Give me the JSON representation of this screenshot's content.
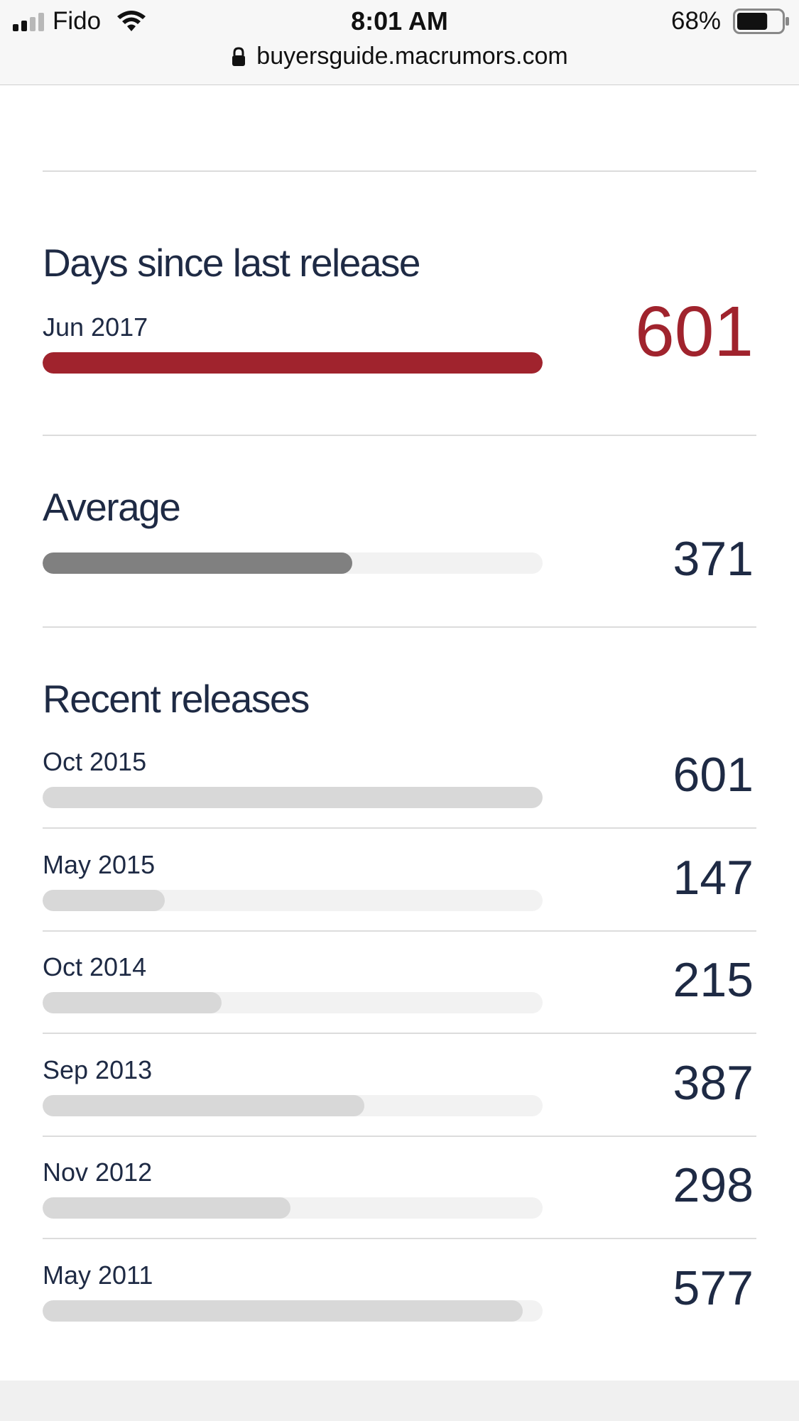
{
  "status_bar": {
    "carrier": "Fido",
    "time": "8:01 AM",
    "battery_percent": "68%",
    "battery_level": 0.68,
    "url": "buyersguide.macrumors.com",
    "icons": [
      "signal-icon",
      "wifi-icon",
      "lock-icon",
      "battery-icon"
    ]
  },
  "days_since": {
    "title": "Days since last release",
    "date": "Jun 2017",
    "value": "601",
    "bar_fraction": 1.0,
    "color": "#a0232d"
  },
  "average": {
    "title": "Average",
    "value": "371",
    "bar_fraction": 0.62,
    "color": "#808080"
  },
  "recent": {
    "title": "Recent releases",
    "bar_color": "#d8d8d8",
    "track_color": "#f2f2f2",
    "items": [
      {
        "date": "Oct 2015",
        "value": "601",
        "bar_fraction": 1.0
      },
      {
        "date": "May 2015",
        "value": "147",
        "bar_fraction": 0.245
      },
      {
        "date": "Oct 2014",
        "value": "215",
        "bar_fraction": 0.358
      },
      {
        "date": "Sep 2013",
        "value": "387",
        "bar_fraction": 0.644
      },
      {
        "date": "Nov 2012",
        "value": "298",
        "bar_fraction": 0.496
      },
      {
        "date": "May 2011",
        "value": "577",
        "bar_fraction": 0.96
      }
    ]
  }
}
